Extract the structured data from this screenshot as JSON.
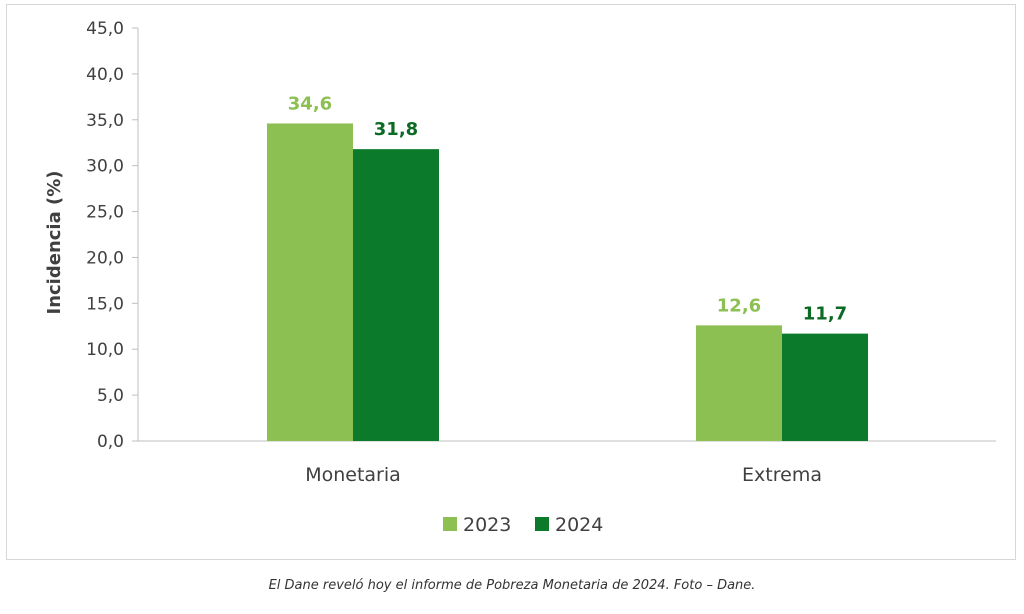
{
  "chart_data": {
    "type": "bar",
    "title": "",
    "xlabel": "",
    "ylabel": "Incidencia (%)",
    "categories": [
      "Monetaria",
      "Extrema"
    ],
    "series": [
      {
        "name": "2023",
        "values": [
          34.6,
          12.6
        ],
        "labels": [
          "34,6",
          "12,6"
        ],
        "color": "#8dc052",
        "label_color": "#8dc052"
      },
      {
        "name": "2024",
        "values": [
          31.8,
          11.7
        ],
        "labels": [
          "31,8",
          "11,7"
        ],
        "color": "#0b7a2a",
        "label_color": "#0b6a24"
      }
    ],
    "ylim": [
      0,
      45
    ],
    "yticks": [
      0,
      5,
      10,
      15,
      20,
      25,
      30,
      35,
      40,
      45
    ],
    "ytick_labels": [
      "0,0",
      "5,0",
      "10,0",
      "15,0",
      "20,0",
      "25,0",
      "30,0",
      "35,0",
      "40,0",
      "45,0"
    ],
    "grid": false,
    "legend_position": "bottom-center"
  },
  "caption": "El Dane reveló hoy el informe de Pobreza Monetaria de 2024. Foto – Dane."
}
